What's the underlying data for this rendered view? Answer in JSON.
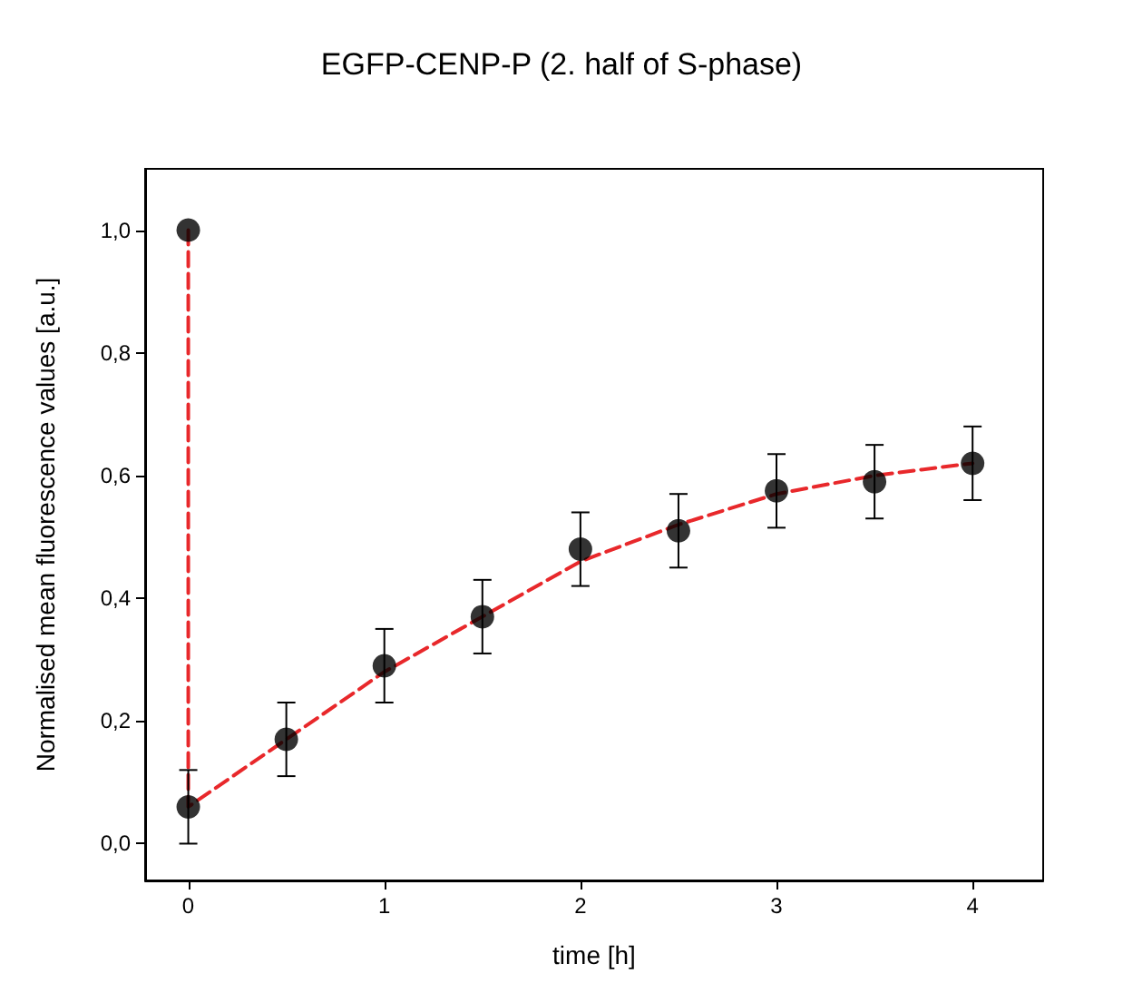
{
  "chart_data": {
    "type": "scatter",
    "title": "EGFP-CENP-P (2. half of S-phase)",
    "xlabel": "time [h]",
    "ylabel": "Normalised mean fluorescence values [a.u.]",
    "xlim": [
      -0.22,
      4.36
    ],
    "ylim": [
      -0.06,
      1.1
    ],
    "xticks": [
      0,
      1,
      2,
      3,
      4
    ],
    "yticks": [
      {
        "value": 0,
        "label": "0,0"
      },
      {
        "value": 0.2,
        "label": "0,2"
      },
      {
        "value": 0.4,
        "label": "0,4"
      },
      {
        "value": 0.6,
        "label": "0,6"
      },
      {
        "value": 0.8,
        "label": "0,8"
      },
      {
        "value": 1,
        "label": "1,0"
      }
    ],
    "grid": false,
    "series": [
      {
        "type": "line",
        "color": "#e8282b",
        "line_style": "dashed",
        "marker": "none",
        "x": [
          0,
          0,
          0.5,
          1,
          1.5,
          2,
          2.5,
          3,
          3.5,
          4
        ],
        "values": [
          1.0,
          0.06,
          0.17,
          0.28,
          0.37,
          0.46,
          0.52,
          0.57,
          0.6,
          0.62
        ]
      },
      {
        "color": "#000000",
        "marker": "circle",
        "x": [
          0,
          0,
          0.5,
          1,
          1.5,
          2,
          2.5,
          3,
          3.5,
          4
        ],
        "values": [
          1.0,
          0.06,
          0.17,
          0.29,
          0.37,
          0.48,
          0.51,
          0.575,
          0.59,
          0.62
        ],
        "errors": [
          null,
          0.06,
          0.06,
          0.06,
          0.06,
          0.06,
          0.06,
          0.06,
          0.06,
          0.06
        ]
      }
    ]
  }
}
